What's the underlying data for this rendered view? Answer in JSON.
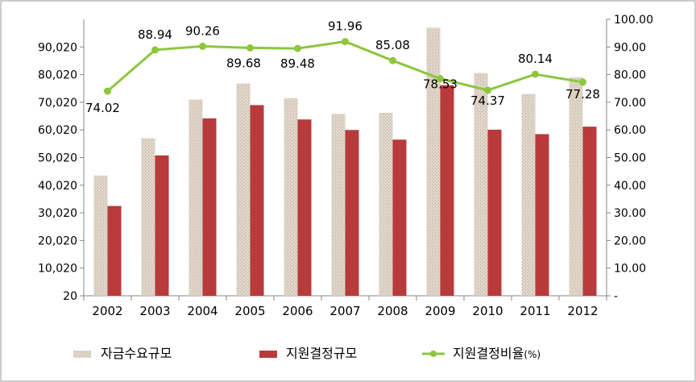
{
  "chart_data": {
    "type": "bar",
    "categories": [
      "2002",
      "2003",
      "2004",
      "2005",
      "2006",
      "2007",
      "2008",
      "2009",
      "2010",
      "2011",
      "2012"
    ],
    "series": [
      {
        "name": "자금수요규모",
        "type": "bar",
        "axis": "left",
        "color": "#d9cfc0",
        "values": [
          43500,
          57000,
          71000,
          76800,
          71500,
          65800,
          66200,
          97000,
          80600,
          73000,
          79000
        ]
      },
      {
        "name": "지원결정규모",
        "type": "bar",
        "axis": "left",
        "color": "#b83a3a",
        "values": [
          32500,
          50800,
          64200,
          69000,
          63800,
          60000,
          56500,
          76200,
          60100,
          58500,
          61200
        ]
      },
      {
        "name": "지원결정비율",
        "legend_suffix": "(%)",
        "type": "line",
        "axis": "right",
        "color": "#8dc63f",
        "values": [
          74.02,
          88.94,
          90.26,
          89.68,
          89.48,
          91.96,
          85.08,
          78.53,
          74.37,
          80.14,
          77.28
        ],
        "labels": [
          "74.02",
          "88.94",
          "90.26",
          "89.68",
          "89.48",
          "91.96",
          "85.08",
          "78.53",
          "74.37",
          "80.14",
          "77.28"
        ]
      }
    ],
    "y_left": {
      "ylim": [
        20,
        100020
      ],
      "ticks": [
        "20",
        "10,020",
        "20,020",
        "30,020",
        "40,020",
        "50,020",
        "60,020",
        "70,020",
        "80,020",
        "90,020"
      ]
    },
    "y_right": {
      "ylim": [
        0,
        100
      ],
      "ticks": [
        "-",
        "10.00",
        "20.00",
        "30.00",
        "40.00",
        "50.00",
        "60.00",
        "70.00",
        "80.00",
        "90.00",
        "100.00"
      ]
    },
    "legend_position": "bottom",
    "grid": false
  }
}
